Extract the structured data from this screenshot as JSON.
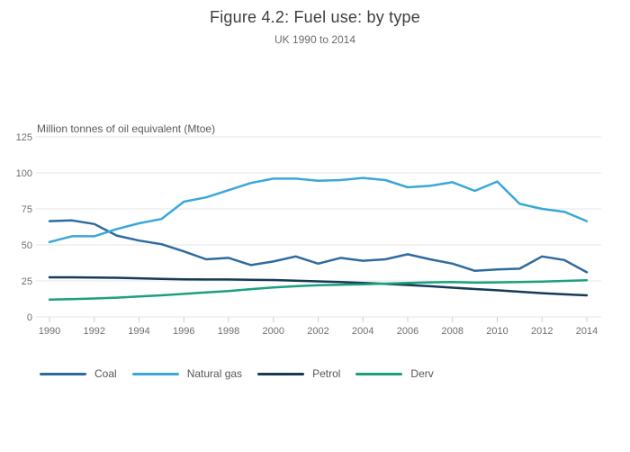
{
  "header": {
    "title": "Figure 4.2: Fuel use: by type",
    "subtitle": "UK 1990 to 2014"
  },
  "chart_data": {
    "type": "line",
    "title": "Figure 4.2: Fuel use: by type",
    "subtitle": "UK 1990 to 2014",
    "xlabel": "",
    "ylabel": "Million tonnes of oil equivalent (Mtoe)",
    "x": [
      1990,
      1991,
      1992,
      1993,
      1994,
      1995,
      1996,
      1997,
      1998,
      1999,
      2000,
      2001,
      2002,
      2003,
      2004,
      2005,
      2006,
      2007,
      2008,
      2009,
      2010,
      2011,
      2012,
      2013,
      2014
    ],
    "x_tick_labels": [
      "1990",
      "1992",
      "1994",
      "1996",
      "1998",
      "2000",
      "2002",
      "2004",
      "2006",
      "2008",
      "2010",
      "2012",
      "2014"
    ],
    "y_ticks": [
      0,
      25,
      50,
      75,
      100,
      125
    ],
    "ylim": [
      0,
      131
    ],
    "grid": "horizontal",
    "legend_position": "bottom-left",
    "series": [
      {
        "name": "Coal",
        "color": "#2f6a9f",
        "values": [
          66.5,
          67,
          64.5,
          56.5,
          53,
          50.5,
          45.5,
          40,
          41,
          36,
          38.5,
          42,
          37,
          41,
          39,
          40,
          43.5,
          40,
          37,
          32,
          33,
          33.5,
          42,
          39.5,
          31
        ]
      },
      {
        "name": "Natural gas",
        "color": "#3aa7d9",
        "values": [
          52,
          56,
          56,
          61,
          65,
          68,
          80,
          83,
          88,
          93,
          96,
          96,
          94.5,
          95,
          96.5,
          95,
          90,
          91,
          93.5,
          87.5,
          94,
          78.5,
          75,
          73,
          66.5
        ]
      },
      {
        "name": "Petrol",
        "color": "#143a56",
        "values": [
          27.5,
          27.5,
          27.4,
          27.2,
          26.8,
          26.4,
          26.1,
          26,
          26,
          25.8,
          25.6,
          25.2,
          24.7,
          24.2,
          23.6,
          23,
          22.2,
          21.3,
          20.3,
          19.4,
          18.5,
          17.5,
          16.5,
          15.7,
          15
        ]
      },
      {
        "name": "Derv",
        "color": "#1ba07e",
        "values": [
          12,
          12.4,
          12.8,
          13.4,
          14.2,
          15,
          16,
          17,
          18,
          19.3,
          20.5,
          21.3,
          22,
          22.4,
          22.7,
          23.1,
          23.6,
          24,
          24.2,
          23.8,
          24,
          24.2,
          24.5,
          25,
          25.5
        ]
      }
    ]
  },
  "colors": {
    "gridline": "#e6e6e6",
    "x_tick": "#c6d1e1",
    "axis_text": "#6e6e6e",
    "title_text": "#3e3e3e",
    "subtitle_text": "#6b6b6b",
    "legend_text": "#565656",
    "background": "#ffffff"
  }
}
